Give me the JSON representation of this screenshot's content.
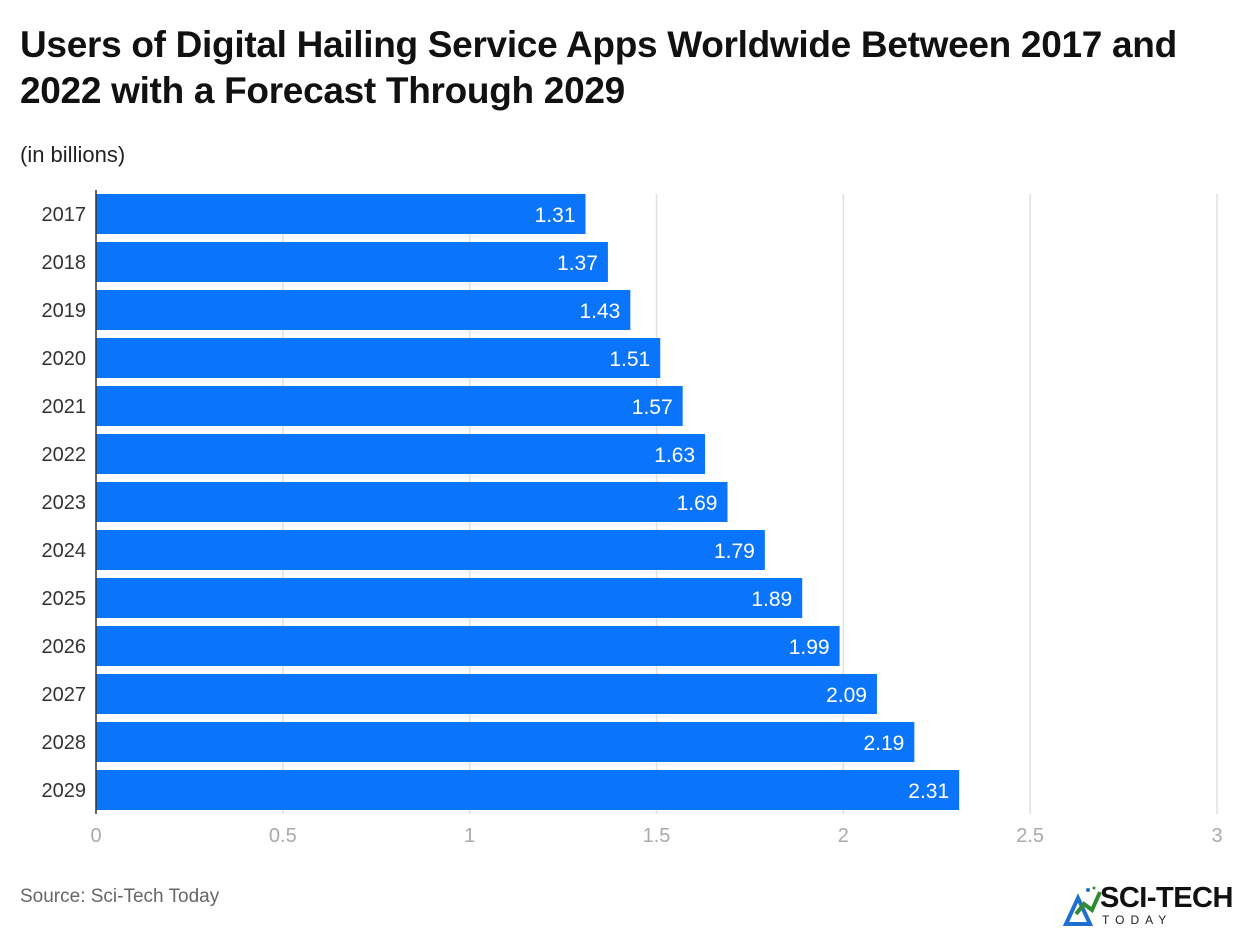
{
  "chart_data": {
    "type": "bar",
    "orientation": "horizontal",
    "title": "Users of Digital Hailing Service Apps Worldwide Between 2017 and 2022 with a Forecast Through 2029",
    "subtitle": "(in billions)",
    "categories": [
      "2017",
      "2018",
      "2019",
      "2020",
      "2021",
      "2022",
      "2023",
      "2024",
      "2025",
      "2026",
      "2027",
      "2028",
      "2029"
    ],
    "values": [
      1.31,
      1.37,
      1.43,
      1.51,
      1.57,
      1.63,
      1.69,
      1.79,
      1.89,
      1.99,
      2.09,
      2.19,
      2.31
    ],
    "data_labels": [
      "1.31",
      "1.37",
      "1.43",
      "1.51",
      "1.57",
      "1.63",
      "1.69",
      "1.79",
      "1.89",
      "1.99",
      "2.09",
      "2.19",
      "2.31"
    ],
    "xlim": [
      0,
      3
    ],
    "x_ticks": [
      "0",
      "0.5",
      "1",
      "1.5",
      "2",
      "2.5",
      "3"
    ],
    "x_tick_values": [
      0,
      0.5,
      1,
      1.5,
      2,
      2.5,
      3
    ],
    "grid": true,
    "bar_color": "#0a75fb",
    "xlabel": "",
    "ylabel": ""
  },
  "source": "Source: Sci-Tech Today",
  "logo": {
    "name": "SCI-TECH",
    "sub": "TODAY"
  }
}
